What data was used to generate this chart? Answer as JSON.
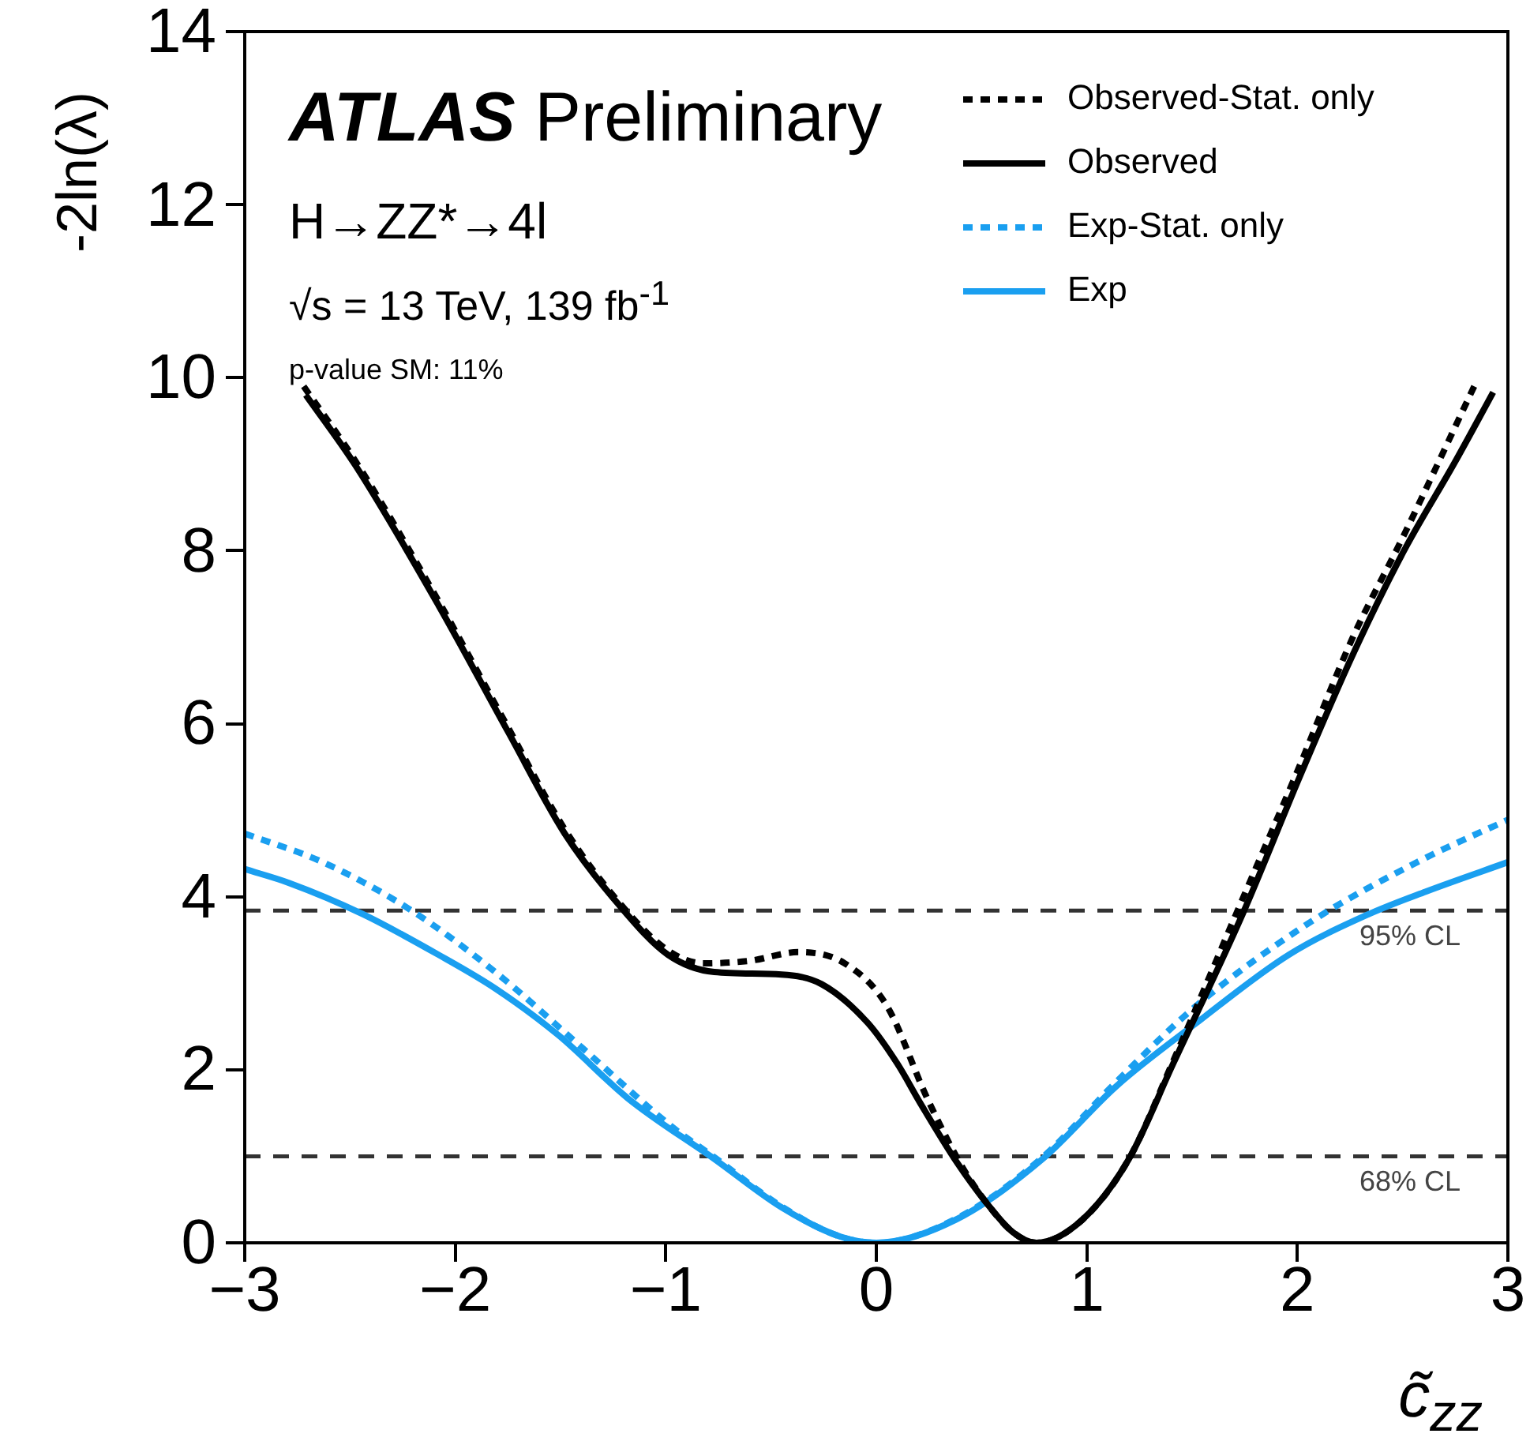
{
  "chart_data": {
    "type": "line",
    "xlabel": "c̃$_{zz}$",
    "ylabel": "-2ln(λ)",
    "annotations": [
      "ATLAS Preliminary",
      "H→ZZ*→4l",
      "√s = 13 TeV, 139 fb$^{-1}$",
      "p-value SM: 11%"
    ],
    "xlim": [
      -3,
      3
    ],
    "ylim": [
      0,
      14
    ],
    "xticks": [
      {
        "value": -3,
        "label": "−3"
      },
      {
        "value": -2,
        "label": "−2"
      },
      {
        "value": -1,
        "label": "−1"
      },
      0,
      1,
      2,
      3
    ],
    "yticks": [
      0,
      2,
      4,
      6,
      8,
      10,
      12,
      14
    ],
    "grid": false,
    "legend": "top right",
    "marker": "none",
    "ref_lines": [
      {
        "axis": "y",
        "value": 3.84,
        "label": "95% CL",
        "color": "#333333",
        "line_style": "dashed"
      },
      {
        "axis": "y",
        "value": 1,
        "label": "68% CL",
        "color": "#333333",
        "line_style": "dashed"
      }
    ],
    "series": [
      {
        "name": "Observed-Stat. only",
        "color": "#000000",
        "line_style": "dotted",
        "x": [
          -2.72,
          -2.47,
          -2.08,
          -1.75,
          -1.48,
          -1.21,
          -0.99,
          -0.82,
          -0.6,
          -0.37,
          -0.15,
          0.05,
          0.24,
          0.41,
          0.54,
          0.65,
          0.76,
          0.98,
          1.2,
          1.41,
          1.73,
          2.0,
          2.26,
          2.5,
          2.84
        ],
        "values": [
          9.9,
          9.02,
          7.42,
          5.96,
          4.78,
          3.9,
          3.38,
          3.23,
          3.26,
          3.36,
          3.23,
          2.74,
          1.68,
          0.87,
          0.41,
          0.12,
          0,
          0.27,
          0.97,
          2.1,
          3.92,
          5.45,
          6.98,
          8.15,
          9.9
        ]
      },
      {
        "name": "Observed",
        "color": "#000000",
        "line_style": "solid",
        "x": [
          -2.71,
          -2.47,
          -2.08,
          -1.75,
          -1.48,
          -1.21,
          -0.99,
          -0.77,
          -0.45,
          -0.26,
          -0.04,
          0.1,
          0.21,
          0.38,
          0.54,
          0.65,
          0.76,
          0.98,
          1.2,
          1.41,
          1.74,
          2.01,
          2.26,
          2.5,
          2.75,
          2.93
        ],
        "values": [
          9.8,
          8.97,
          7.37,
          5.91,
          4.73,
          3.87,
          3.33,
          3.13,
          3.1,
          2.99,
          2.54,
          2.07,
          1.61,
          0.94,
          0.41,
          0.12,
          0,
          0.27,
          0.97,
          2.07,
          3.8,
          5.38,
          6.78,
          7.97,
          9.03,
          9.83
        ]
      },
      {
        "name": "Exp-Stat. only",
        "color": "#1a9ff0",
        "line_style": "dotted",
        "x": [
          -3,
          -2.63,
          -2.22,
          -1.81,
          -1.4,
          -0.97,
          -0.77,
          -0.45,
          -0.17,
          0,
          0.38,
          0.79,
          1.14,
          1.52,
          2.07,
          2.61,
          3
        ],
        "values": [
          4.73,
          4.4,
          3.86,
          3.13,
          2.26,
          1.34,
          0.99,
          0.42,
          0.07,
          0,
          0.28,
          0.99,
          1.86,
          2.74,
          3.72,
          4.45,
          4.89
        ]
      },
      {
        "name": "Exp",
        "color": "#1a9ff0",
        "line_style": "solid",
        "x": [
          -3,
          -2.79,
          -2.44,
          -2.08,
          -1.81,
          -1.51,
          -1.18,
          -0.77,
          -0.45,
          -0.17,
          0,
          0.38,
          0.79,
          1.14,
          1.52,
          1.96,
          2.34,
          2.61,
          3
        ],
        "values": [
          4.32,
          4.16,
          3.8,
          3.33,
          2.94,
          2.4,
          1.67,
          0.97,
          0.41,
          0.07,
          0,
          0.27,
          0.97,
          1.81,
          2.54,
          3.33,
          3.8,
          4.06,
          4.4
        ]
      }
    ]
  }
}
